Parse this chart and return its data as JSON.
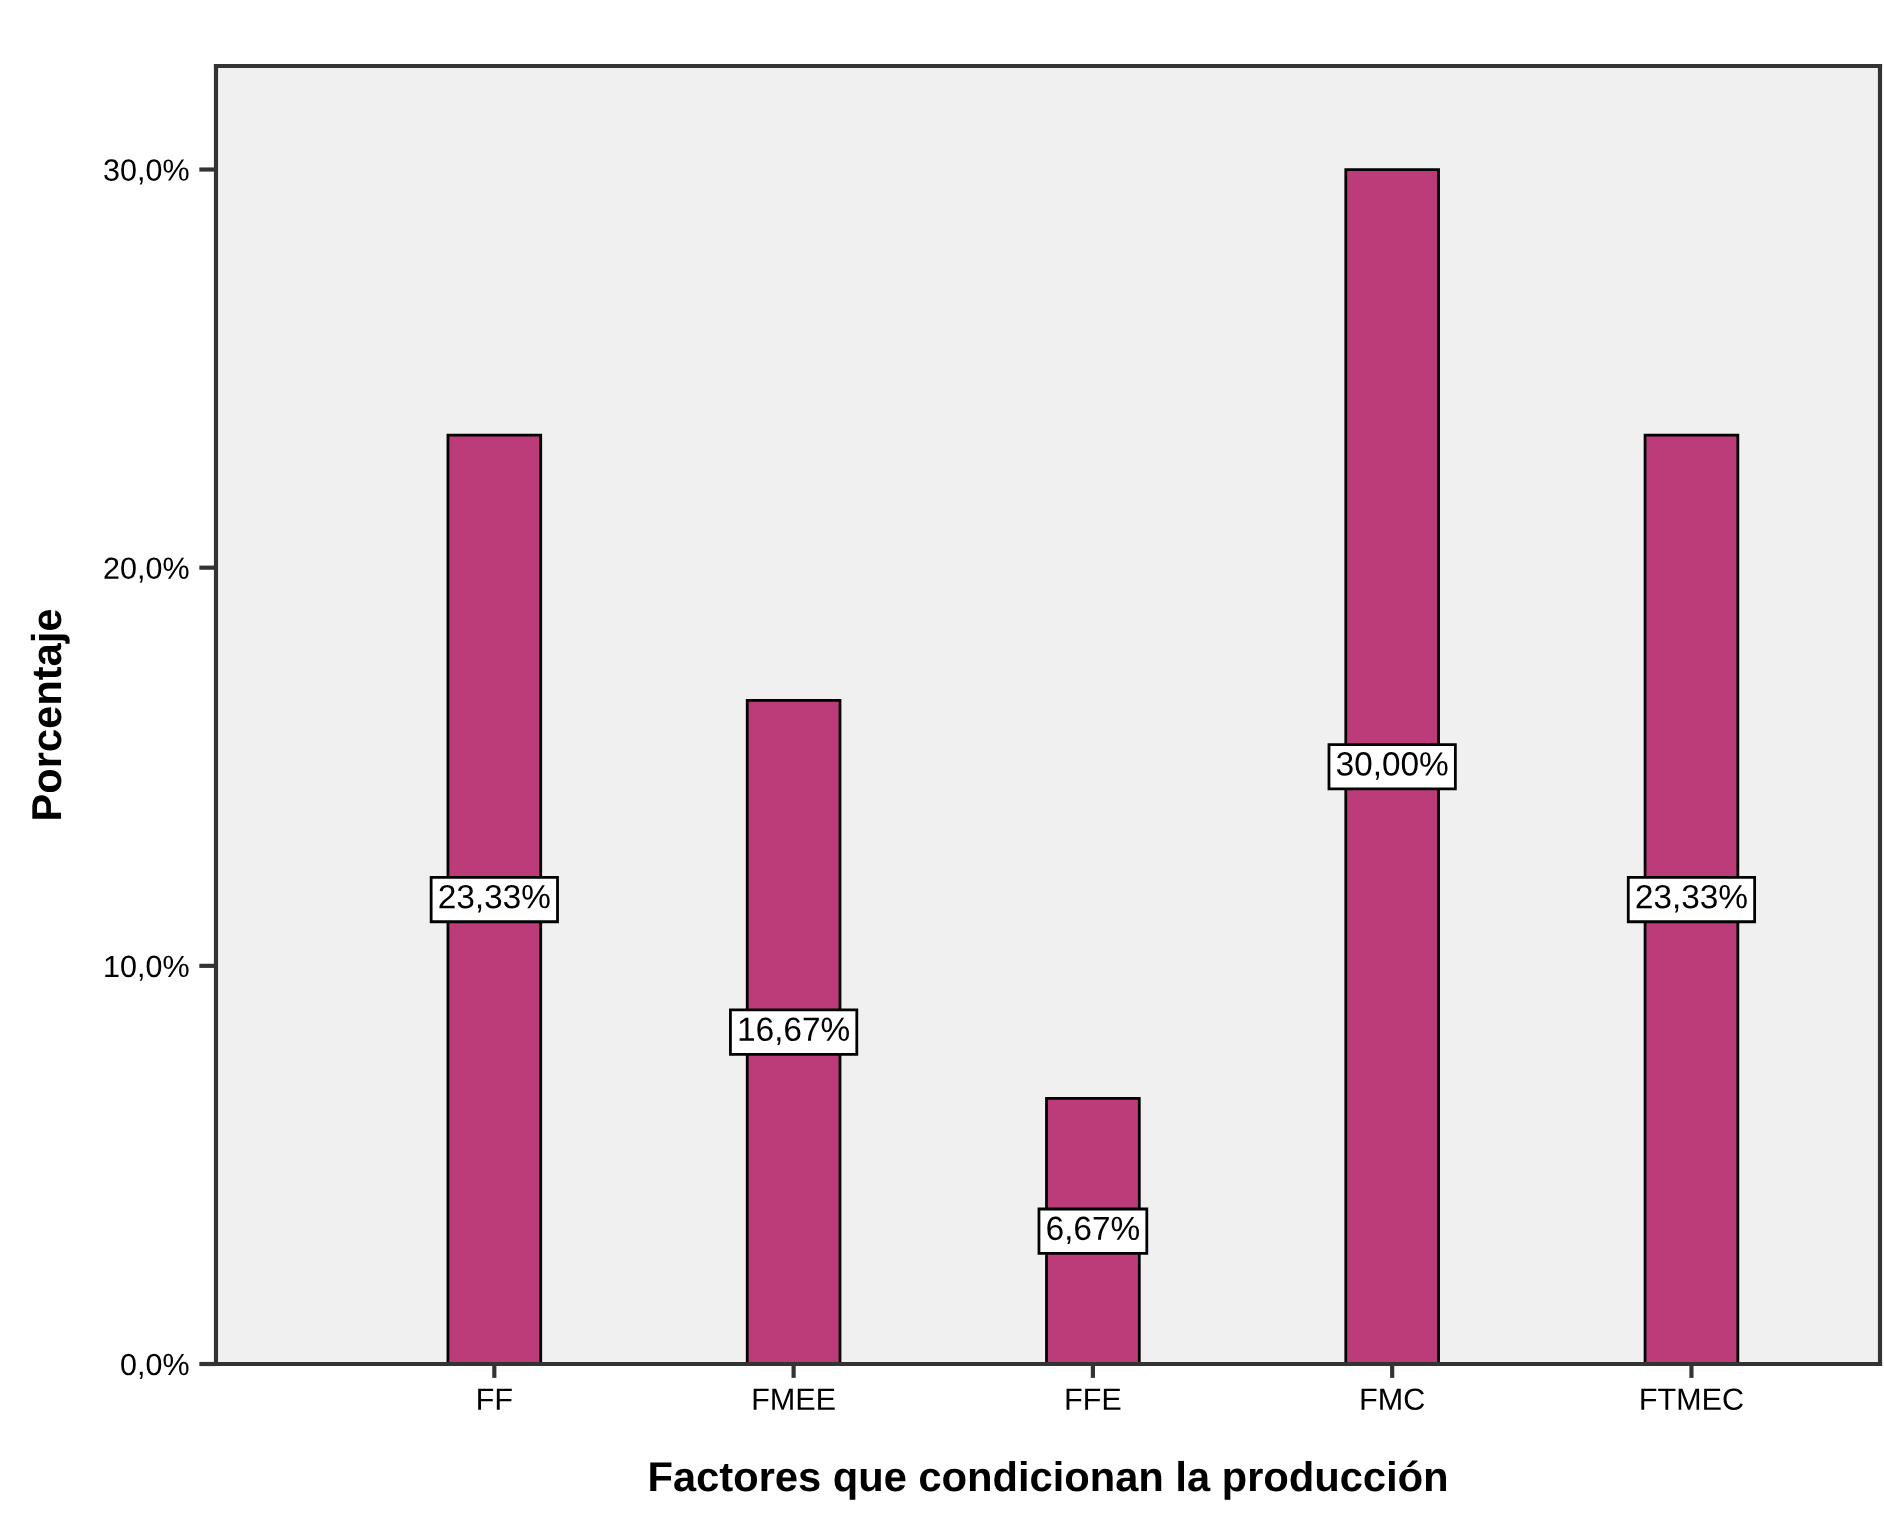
{
  "chart_data": {
    "type": "bar",
    "xlabel": "Factores que condicionan la producción",
    "ylabel": "Porcentaje",
    "categories": [
      "FF",
      "FMEE",
      "FFE",
      "FMC",
      "FTMEC"
    ],
    "values": [
      23.33,
      16.67,
      6.67,
      30.0,
      23.33
    ],
    "value_labels": [
      "23,33%",
      "16,67%",
      "6,67%",
      "30,00%",
      "23,33%"
    ],
    "color": "#bc3c7a",
    "ylim": [
      0,
      32.6
    ],
    "yticks": [
      {
        "value": 0,
        "label": "0,0%"
      },
      {
        "value": 10,
        "label": "10,0%"
      },
      {
        "value": 20,
        "label": "20,0%"
      },
      {
        "value": 30,
        "label": "30,0%"
      }
    ],
    "grid": false
  }
}
